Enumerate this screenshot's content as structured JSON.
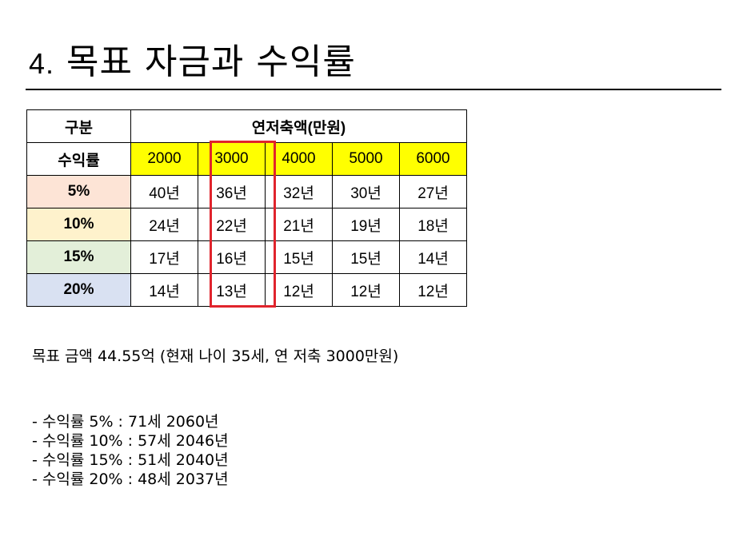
{
  "slide": {
    "title_number": "4.",
    "title_text": "목표 자금과 수익률"
  },
  "table": {
    "corner_label": "구분",
    "group_header": "연저축액(만원)",
    "row_header_label": "수익률",
    "columns": [
      "2000",
      "3000",
      "4000",
      "5000",
      "6000"
    ],
    "rows": [
      {
        "rate": "5%",
        "color": "#fde4d6",
        "cells": [
          "40년",
          "36년",
          "32년",
          "30년",
          "27년"
        ]
      },
      {
        "rate": "10%",
        "color": "#fef2cc",
        "cells": [
          "24년",
          "22년",
          "21년",
          "19년",
          "18년"
        ]
      },
      {
        "rate": "15%",
        "color": "#e3efd9",
        "cells": [
          "17년",
          "16년",
          "15년",
          "15년",
          "14년"
        ]
      },
      {
        "rate": "20%",
        "color": "#d9e1f2",
        "cells": [
          "14년",
          "13년",
          "12년",
          "12년",
          "12년"
        ]
      }
    ],
    "header_color": "#ffff00",
    "highlight_color": "#e0242c"
  },
  "goal_text": "목표 금액 44.55억 (현재 나이 35세, 연 저축 3000만원)",
  "results": [
    "- 수익률 5% : 71세 2060년",
    "- 수익률 10% : 57세 2046년",
    "- 수익률 15% : 51세 2040년",
    "- 수익률 20% : 48세 2037년"
  ]
}
